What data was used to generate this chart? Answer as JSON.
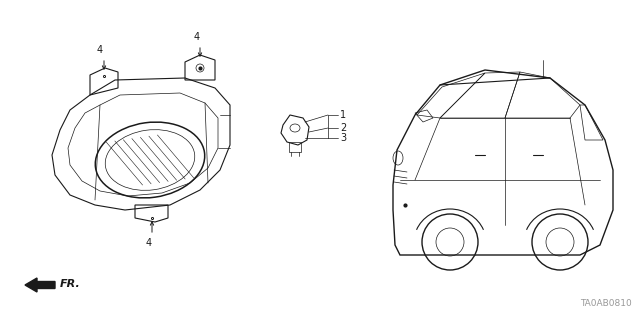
{
  "bg_color": "#ffffff",
  "line_color": "#1a1a1a",
  "diagram_code": "TA0AB0810",
  "fr_label": "FR.",
  "figsize": [
    6.4,
    3.19
  ],
  "dpi": 100,
  "lw": 0.8,
  "lw_thin": 0.5
}
